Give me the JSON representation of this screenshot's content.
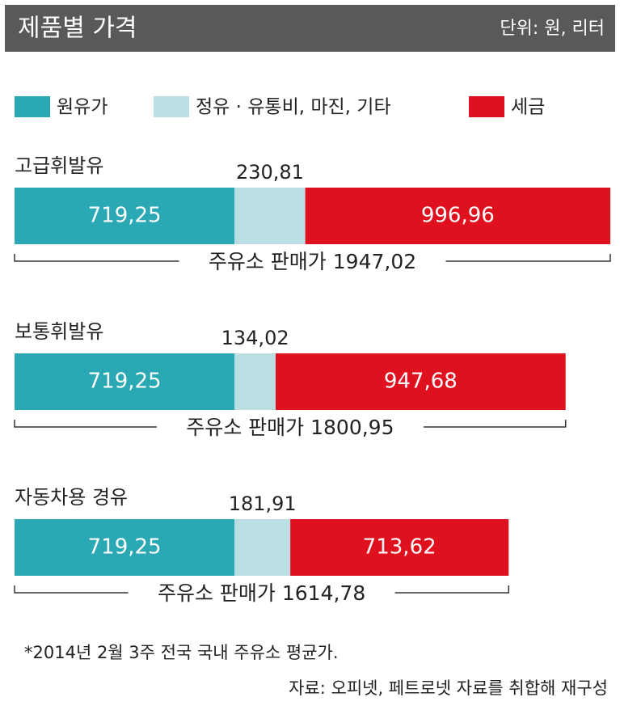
{
  "chart_data": {
    "type": "bar",
    "orientation": "horizontal",
    "stacked": true,
    "title": "제품별 가격",
    "unit": "단위: 원, 리터",
    "categories": [
      "고급휘발유",
      "보통휘발유",
      "자동차용 경유"
    ],
    "series": [
      {
        "name": "원유가",
        "color": "#2aa8b4",
        "values": [
          719.25,
          719.25,
          719.25
        ],
        "value_labels": [
          "719,25",
          "719,25",
          "719,25"
        ]
      },
      {
        "name": "정유 · 유통비, 마진, 기타",
        "color": "#b9dfe2",
        "values": [
          230.81,
          134.02,
          181.91
        ],
        "value_labels": [
          "230,81",
          "134,02",
          "181,91"
        ]
      },
      {
        "name": "세금",
        "color": "#e0111f",
        "values": [
          996.96,
          947.68,
          713.62
        ],
        "value_labels": [
          "996,96",
          "947,68",
          "713,62"
        ]
      }
    ],
    "totals": [
      1947.02,
      1800.95,
      1614.78
    ],
    "total_labels": [
      "주유소 판매가 1947,02",
      "주유소 판매가 1800,95",
      "주유소 판매가 1614,78"
    ],
    "notes": [
      "*2014년 2월 3주 전국 국내 주유소 평균가.",
      "자료: 오피넷, 페트로넷 자료를 취합해 재구성"
    ]
  }
}
